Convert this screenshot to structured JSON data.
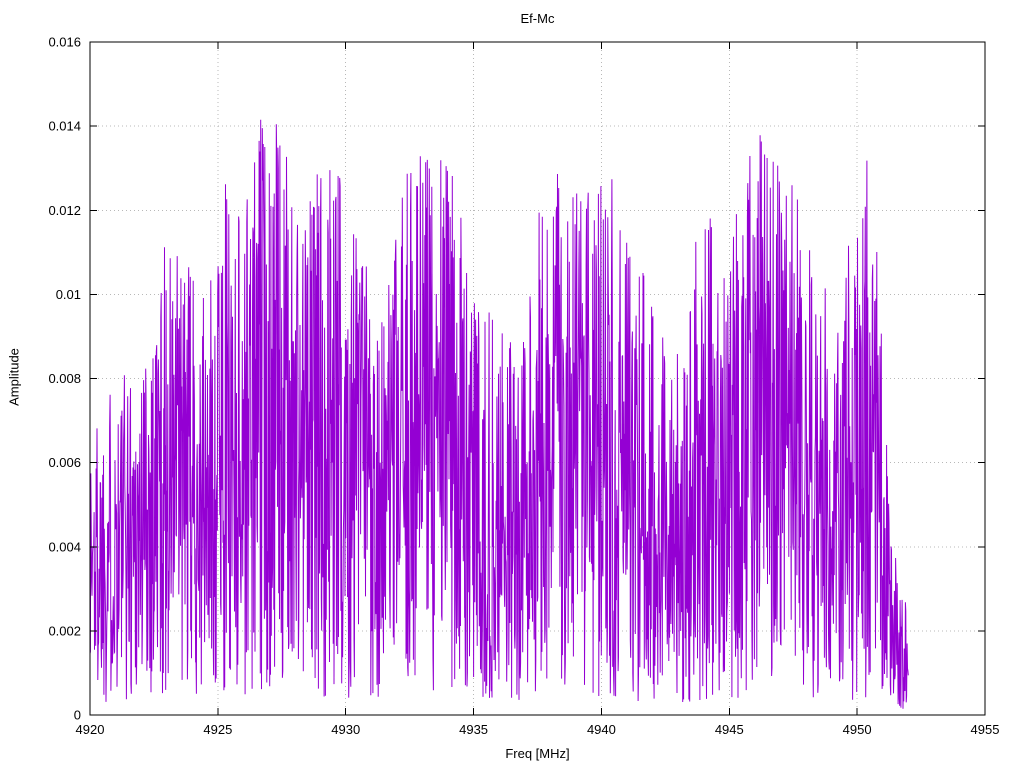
{
  "chart_data": {
    "type": "line",
    "title": "Ef-Mc",
    "xlabel": "Freq [MHz]",
    "ylabel": "Amplitude",
    "xlim": [
      4920,
      4955
    ],
    "ylim": [
      0,
      0.016
    ],
    "xtick_labels": [
      "4920",
      "4925",
      "4930",
      "4935",
      "4940",
      "4945",
      "4950",
      "4955"
    ],
    "ytick_labels": [
      "0",
      "0.002",
      "0.004",
      "0.006",
      "0.008",
      "0.01",
      "0.012",
      "0.014",
      "0.016"
    ],
    "grid": true,
    "legend": "none",
    "line_color": "#9400d3",
    "grid_color": "#b8b8b8",
    "border_color": "#000000",
    "series": [
      {
        "name": "Ef-Mc",
        "description": "dense noise-like amplitude spectrum from 4920 to 4952 MHz, values mostly 0.001-0.009 with spikes to envelope maxima",
        "x_start": 4920.0,
        "x_end": 4952.0,
        "n_points": 2000,
        "noise_seed": 1337,
        "noise_model": "uniform-fraction-of-envelope",
        "envelope": [
          [
            4920.0,
            0.007
          ],
          [
            4921.0,
            0.0082
          ],
          [
            4922.0,
            0.0086
          ],
          [
            4923.0,
            0.0115
          ],
          [
            4924.0,
            0.0106
          ],
          [
            4924.6,
            0.0097
          ],
          [
            4925.2,
            0.0128
          ],
          [
            4926.0,
            0.0125
          ],
          [
            4927.0,
            0.0153
          ],
          [
            4927.6,
            0.0134
          ],
          [
            4928.4,
            0.0122
          ],
          [
            4929.1,
            0.0137
          ],
          [
            4930.0,
            0.0129
          ],
          [
            4930.8,
            0.0113
          ],
          [
            4931.5,
            0.0096
          ],
          [
            4932.5,
            0.0134
          ],
          [
            4933.6,
            0.0142
          ],
          [
            4934.2,
            0.0131
          ],
          [
            4935.0,
            0.0103
          ],
          [
            4936.0,
            0.0092
          ],
          [
            4937.0,
            0.0089
          ],
          [
            4937.8,
            0.0133
          ],
          [
            4938.6,
            0.0126
          ],
          [
            4939.5,
            0.0125
          ],
          [
            4940.5,
            0.0131
          ],
          [
            4941.2,
            0.011
          ],
          [
            4942.0,
            0.0104
          ],
          [
            4943.0,
            0.0088
          ],
          [
            4944.0,
            0.0124
          ],
          [
            4945.0,
            0.0116
          ],
          [
            4946.1,
            0.0142
          ],
          [
            4946.6,
            0.0133
          ],
          [
            4947.5,
            0.0129
          ],
          [
            4948.3,
            0.0122
          ],
          [
            4949.0,
            0.0095
          ],
          [
            4949.7,
            0.0113
          ],
          [
            4950.3,
            0.0138
          ],
          [
            4950.8,
            0.0113
          ],
          [
            4951.3,
            0.0048
          ],
          [
            4951.7,
            0.0035
          ],
          [
            4952.0,
            0.003
          ]
        ]
      }
    ]
  }
}
